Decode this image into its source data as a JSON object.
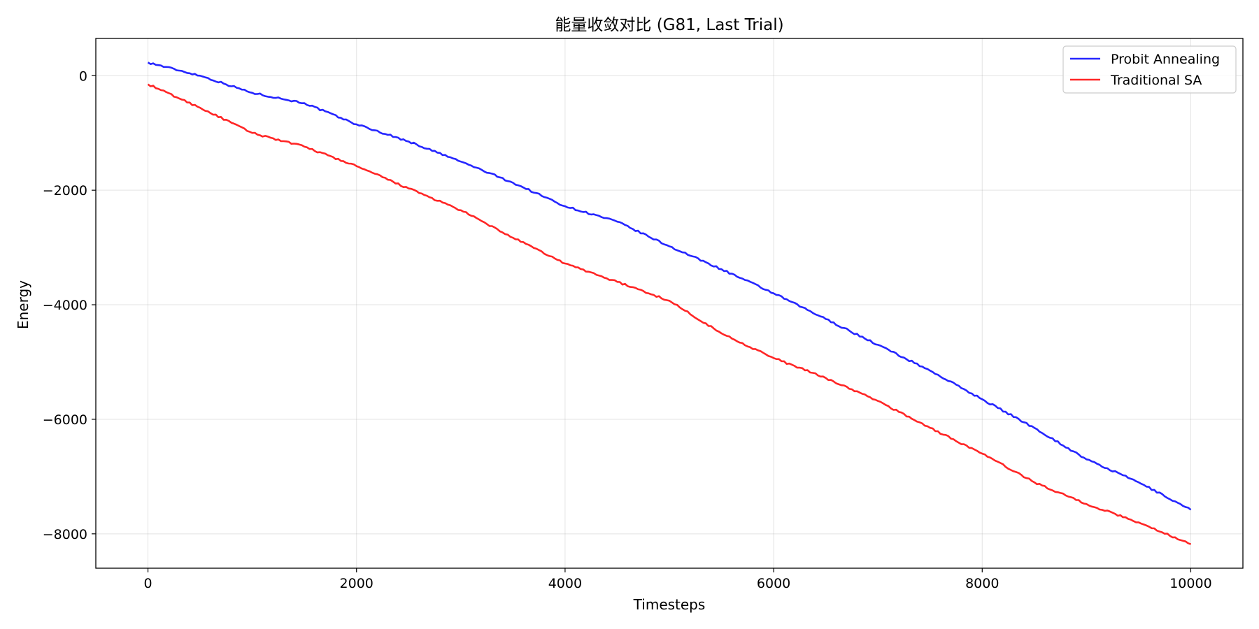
{
  "chart_data": {
    "type": "line",
    "title": "能量收敛对比 (G81, Last Trial)",
    "xlabel": "Timesteps",
    "ylabel": "Energy",
    "xlim": [
      -500,
      10500
    ],
    "ylim": [
      -8600,
      650
    ],
    "xticks": [
      0,
      2000,
      4000,
      6000,
      8000,
      10000
    ],
    "xtick_labels": [
      "0",
      "2000",
      "4000",
      "6000",
      "8000",
      "10000"
    ],
    "yticks": [
      0,
      -2000,
      -4000,
      -6000,
      -8000
    ],
    "ytick_labels": [
      "0",
      "−2000",
      "−4000",
      "−6000",
      "−8000"
    ],
    "grid": true,
    "legend": "top-right",
    "series": [
      {
        "name": "Probit Annealing",
        "color": "#0000ff",
        "x": [
          0,
          500,
          1000,
          1500,
          2000,
          2500,
          3000,
          3500,
          4000,
          4500,
          5000,
          5500,
          6000,
          6500,
          7000,
          7500,
          8000,
          8500,
          9000,
          9500,
          10000
        ],
        "y": [
          230,
          0,
          -300,
          -480,
          -850,
          -1150,
          -1500,
          -1870,
          -2280,
          -2550,
          -2980,
          -3380,
          -3800,
          -4250,
          -4700,
          -5150,
          -5650,
          -6150,
          -6700,
          -7100,
          -7580
        ]
      },
      {
        "name": "Traditional SA",
        "color": "#ff0000",
        "x": [
          0,
          500,
          1000,
          1500,
          2000,
          2500,
          3000,
          3500,
          4000,
          4500,
          5000,
          5500,
          6000,
          6500,
          7000,
          7500,
          8000,
          8500,
          9000,
          9500,
          10000
        ],
        "y": [
          -150,
          -560,
          -1000,
          -1240,
          -1580,
          -1970,
          -2350,
          -2830,
          -3280,
          -3600,
          -3930,
          -4500,
          -4930,
          -5280,
          -5680,
          -6150,
          -6600,
          -7100,
          -7480,
          -7800,
          -8180
        ]
      }
    ]
  }
}
